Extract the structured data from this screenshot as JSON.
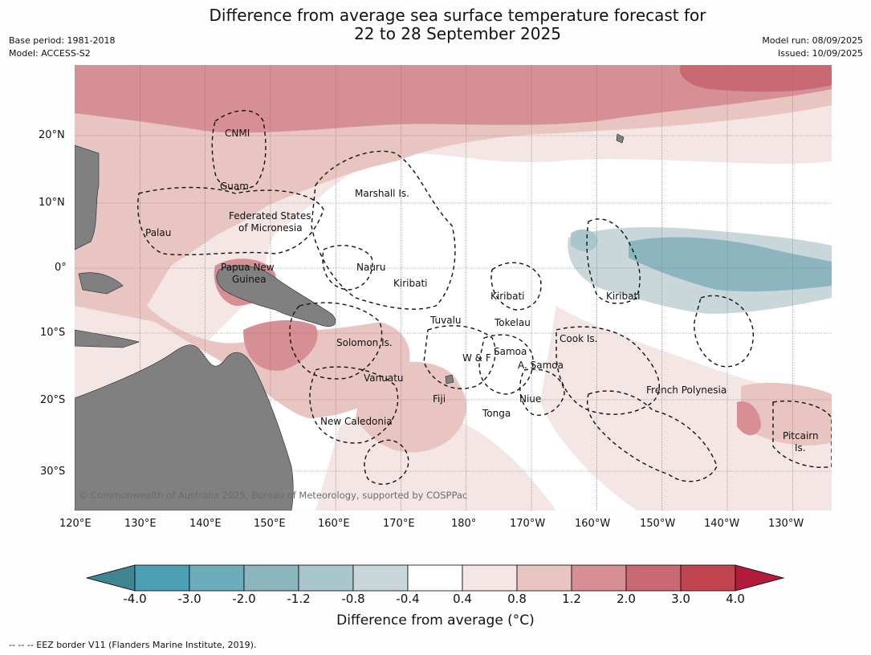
{
  "title": "Difference from average sea surface temperature forecast for\n22 to 28 September 2025",
  "meta": {
    "base_period": "Base period: 1981-2018",
    "model": "Model: ACCESS-S2",
    "model_run": "Model run: 08/09/2025",
    "issued": "Issued: 10/09/2025"
  },
  "map": {
    "lat_labels": [
      "20°N",
      "10°N",
      "0°",
      "10°S",
      "20°S",
      "30°S"
    ],
    "lon_labels": [
      "120°E",
      "130°E",
      "140°E",
      "150°E",
      "160°E",
      "170°E",
      "180°",
      "170°W",
      "160°W",
      "150°W",
      "140°W",
      "130°W"
    ],
    "regions": [
      "CNMI",
      "Guam",
      "Marshall Is.",
      "Federated States",
      "of Micronesia",
      "Palau",
      "Papua New",
      "Guinea",
      "Nauru",
      "Kiribati",
      "Kiribati",
      "Kiribati",
      "Tuvalu",
      "Tokelau",
      "Cook Is.",
      "Solomon Is.",
      "W & F",
      "Samoa",
      "A. Samoa",
      "Vanuatu",
      "Fiji",
      "Niue",
      "Tonga",
      "French Polynesia",
      "New Caledonia",
      "Pitcairn",
      "Is."
    ],
    "copyright": "© Commonwealth of Australia 2025, Bureau of Meteorology, supported by COSPPac"
  },
  "colorbar": {
    "ticks": [
      "-4.0",
      "-3.0",
      "-2.0",
      "-1.2",
      "-0.8",
      "-0.4",
      "0.4",
      "0.8",
      "1.2",
      "2.0",
      "3.0",
      "4.0"
    ],
    "colors": [
      "#3f8592",
      "#4b9fb2",
      "#6badbb",
      "#8cb5c0",
      "#a8c6cc",
      "#c9d7db",
      "#ffffff",
      "#f4e6e5",
      "#e8c5c1",
      "#d78f96",
      "#c96a73",
      "#c04550",
      "#b31b3a"
    ],
    "title": "Difference from average (°C)"
  },
  "footnote": "--  --  -- EEZ border V11 (Flanders Marine Institute, 2019)."
}
